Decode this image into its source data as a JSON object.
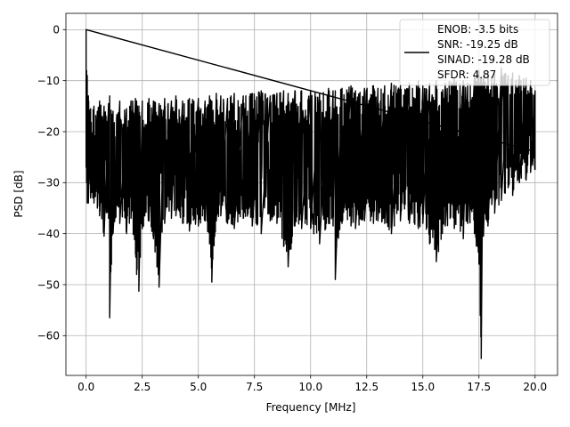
{
  "chart_data": {
    "type": "line",
    "title": "",
    "xlabel": "Frequency [MHz]",
    "ylabel": "PSD [dB]",
    "xlim": [
      -0.9,
      21.0
    ],
    "ylim": [
      -67.8,
      3.2
    ],
    "grid": true,
    "xticks": [
      0.0,
      2.5,
      5.0,
      7.5,
      10.0,
      12.5,
      15.0,
      17.5,
      20.0
    ],
    "xtick_labels": [
      "0.0",
      "2.5",
      "5.0",
      "7.5",
      "10.0",
      "12.5",
      "15.0",
      "17.5",
      "20.0"
    ],
    "yticks": [
      0,
      -10,
      -20,
      -30,
      -40,
      -50,
      -60
    ],
    "ytick_labels": [
      "0",
      "−10",
      "−20",
      "−30",
      "−40",
      "−50",
      "−60"
    ],
    "legend": {
      "position": "top-right",
      "entries": [
        "ENOB: -3.5 bits",
        "SNR: -19.25 dB",
        "SINAD: -19.28 dB",
        "SFDR: 4.87"
      ]
    },
    "series": [
      {
        "color": "#000000",
        "x": [
          0.0,
          0.02,
          0.05,
          0.1,
          0.2,
          0.35,
          0.5,
          0.6,
          0.8,
          1.0,
          1.05,
          1.2,
          1.5,
          1.8,
          2.0,
          2.2,
          2.25,
          2.35,
          2.5,
          2.8,
          3.0,
          3.25,
          3.5,
          3.8,
          4.0,
          4.3,
          4.6,
          5.0,
          5.3,
          5.5,
          5.6,
          5.8,
          6.0,
          6.3,
          6.6,
          7.0,
          7.4,
          7.8,
          8.2,
          8.5,
          8.8,
          9.0,
          9.3,
          9.6,
          10.0,
          10.4,
          10.8,
          11.0,
          11.1,
          11.4,
          11.8,
          12.0,
          12.4,
          12.8,
          13.0,
          13.3,
          13.6,
          14.0,
          14.4,
          14.8,
          15.0,
          15.3,
          15.6,
          16.0,
          16.4,
          16.8,
          17.0,
          17.3,
          17.5,
          17.6,
          17.7,
          17.9,
          18.2,
          18.5,
          18.8,
          19.0,
          19.3,
          19.6,
          19.8,
          20.0
        ],
        "y_max": [
          0.0,
          -8.0,
          -9.0,
          -13.0,
          -15.5,
          -15.0,
          -16.0,
          -14.0,
          -15.0,
          -14.5,
          -13.0,
          -16.0,
          -14.0,
          -15.5,
          -14.0,
          -13.5,
          -14.0,
          -15.0,
          -14.0,
          -13.5,
          -14.0,
          -14.5,
          -13.5,
          -14.0,
          -13.0,
          -14.0,
          -13.5,
          -13.5,
          -14.0,
          -13.0,
          -14.0,
          -12.5,
          -13.0,
          -13.5,
          -12.5,
          -13.0,
          -12.5,
          -12.0,
          -13.0,
          -12.5,
          -12.0,
          -12.5,
          -12.0,
          -12.0,
          -12.0,
          -12.5,
          -11.5,
          -12.0,
          -12.0,
          -11.5,
          -11.0,
          -12.0,
          -11.5,
          -11.0,
          -11.5,
          -11.0,
          -10.5,
          -11.0,
          -10.5,
          -10.0,
          -11.0,
          -10.5,
          -10.0,
          -10.5,
          -9.5,
          -10.0,
          -10.5,
          -9.0,
          -8.0,
          -9.5,
          -9.0,
          -8.5,
          -8.5,
          -7.5,
          -9.0,
          -8.5,
          -9.0,
          -9.5,
          -10.0,
          -12.0
        ],
        "y_min": [
          -27.0,
          -30.0,
          -34.0,
          -34.0,
          -33.0,
          -34.0,
          -35.0,
          -36.5,
          -40.5,
          -37.0,
          -56.5,
          -40.0,
          -38.0,
          -40.0,
          -37.0,
          -44.0,
          -48.0,
          -51.3,
          -39.0,
          -37.5,
          -41.0,
          -50.5,
          -38.0,
          -37.0,
          -36.5,
          -38.0,
          -39.5,
          -38.5,
          -37.5,
          -42.0,
          -49.5,
          -37.5,
          -36.5,
          -38.0,
          -39.0,
          -37.0,
          -38.5,
          -40.0,
          -37.5,
          -38.0,
          -42.5,
          -46.5,
          -38.5,
          -39.0,
          -39.0,
          -42.0,
          -38.0,
          -38.5,
          -49.0,
          -38.0,
          -38.5,
          -39.0,
          -37.5,
          -38.0,
          -37.5,
          -38.0,
          -40.0,
          -37.5,
          -38.0,
          -39.0,
          -38.0,
          -42.0,
          -45.5,
          -38.5,
          -39.0,
          -41.0,
          -38.0,
          -40.0,
          -46.0,
          -64.5,
          -40.5,
          -38.5,
          -36.0,
          -33.5,
          -31.0,
          -32.5,
          -30.0,
          -29.5,
          -28.0,
          -27.5
        ]
      }
    ]
  }
}
